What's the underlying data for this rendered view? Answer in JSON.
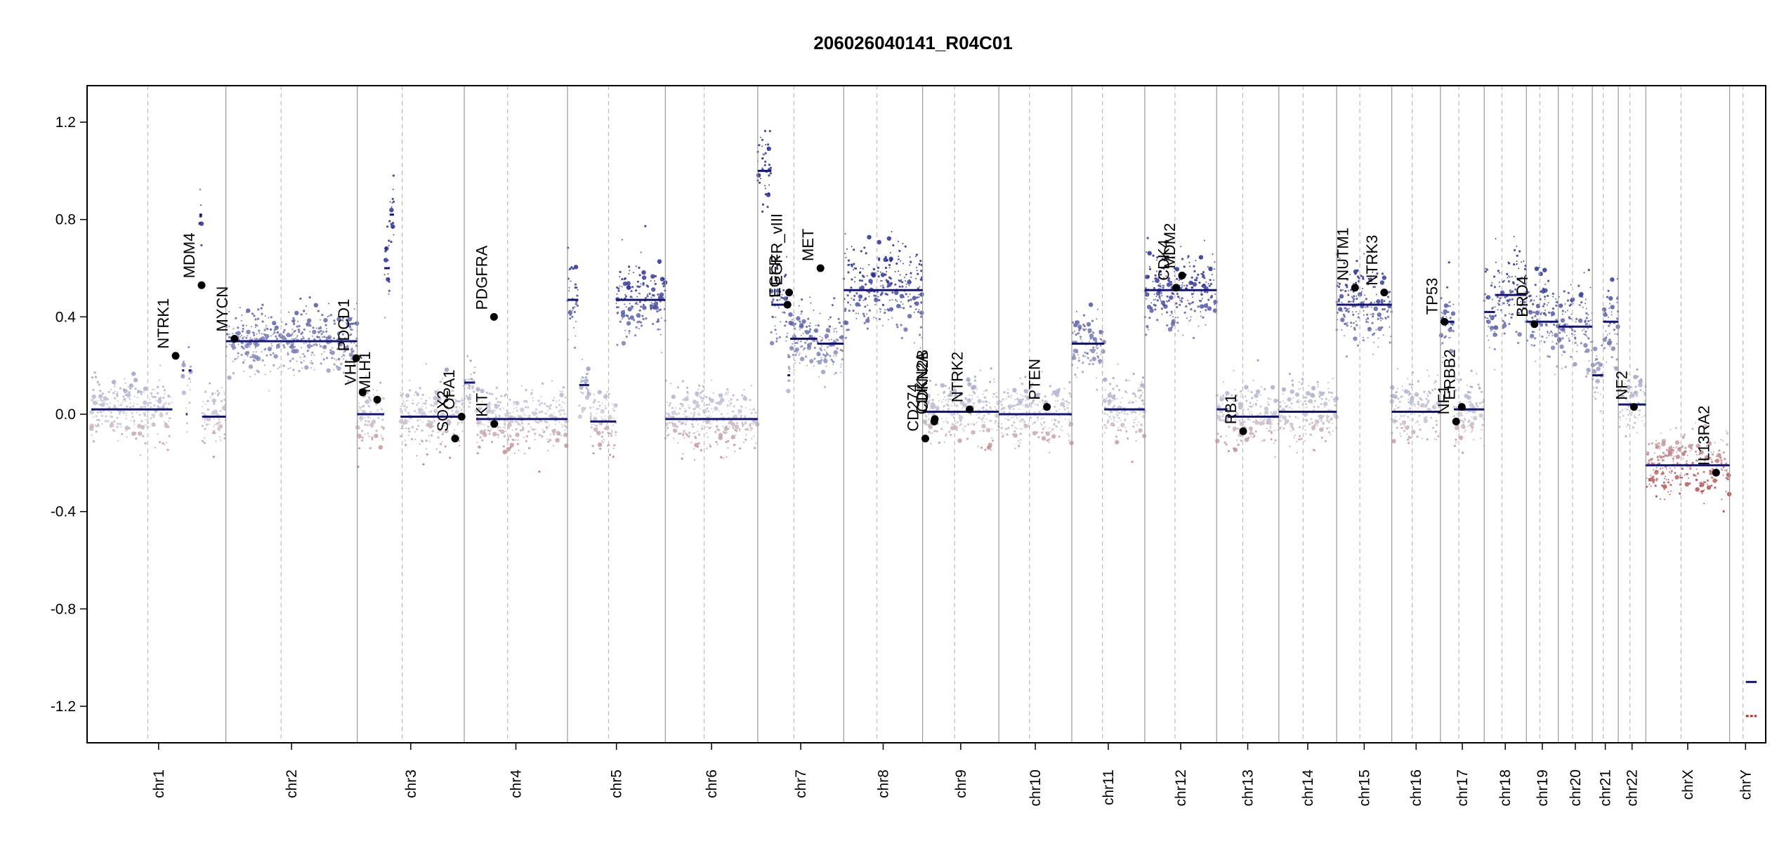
{
  "chart_data": {
    "type": "scatter",
    "title": "206026040141_R04C01",
    "xlabel": "",
    "ylabel": "",
    "ylim": [
      -1.35,
      1.35
    ],
    "yticks": [
      1.2,
      0.8,
      0.4,
      0.0,
      -0.4,
      -0.8,
      -1.2
    ],
    "ytick_labels": [
      "1.2",
      "0.8",
      "0.4",
      "0.0",
      "-0.4",
      "-0.8",
      "-1.2"
    ],
    "grid": false,
    "legend": "none",
    "colors": {
      "high": "#1b1f8f",
      "mid": "#c8c8d4",
      "low": "#b03030",
      "segment": "#141478",
      "chrom_line": "#999999",
      "centromere_line": "#bbbbbb"
    },
    "chromosomes": [
      {
        "name": "chr1",
        "length": 249
      },
      {
        "name": "chr2",
        "length": 243
      },
      {
        "name": "chr3",
        "length": 198
      },
      {
        "name": "chr4",
        "length": 191
      },
      {
        "name": "chr5",
        "length": 181
      },
      {
        "name": "chr6",
        "length": 171
      },
      {
        "name": "chr7",
        "length": 159
      },
      {
        "name": "chr8",
        "length": 146
      },
      {
        "name": "chr9",
        "length": 141
      },
      {
        "name": "chr10",
        "length": 135
      },
      {
        "name": "chr11",
        "length": 135
      },
      {
        "name": "chr12",
        "length": 133
      },
      {
        "name": "chr13",
        "length": 115
      },
      {
        "name": "chr14",
        "length": 107
      },
      {
        "name": "chr15",
        "length": 102
      },
      {
        "name": "chr16",
        "length": 90
      },
      {
        "name": "chr17",
        "length": 81
      },
      {
        "name": "chr18",
        "length": 78
      },
      {
        "name": "chr19",
        "length": 59
      },
      {
        "name": "chr20",
        "length": 63
      },
      {
        "name": "chr21",
        "length": 48
      },
      {
        "name": "chr22",
        "length": 51
      },
      {
        "name": "chrX",
        "length": 155
      },
      {
        "name": "chrY",
        "length": 59
      }
    ],
    "segments": [
      {
        "chr": "chr1",
        "start": 0,
        "end": 150,
        "value": 0.02
      },
      {
        "chr": "chr1",
        "start": 168,
        "end": 172,
        "value": 0.18
      },
      {
        "chr": "chr1",
        "start": 175,
        "end": 178,
        "value": 0.0
      },
      {
        "chr": "chr1",
        "start": 180,
        "end": 185,
        "value": 0.18
      },
      {
        "chr": "chr1",
        "start": 200,
        "end": 205,
        "value": 0.82
      },
      {
        "chr": "chr1",
        "start": 205,
        "end": 249,
        "value": -0.01
      },
      {
        "chr": "chr2",
        "start": 0,
        "end": 243,
        "value": 0.3
      },
      {
        "chr": "chr3",
        "start": 0,
        "end": 50,
        "value": 0.0
      },
      {
        "chr": "chr3",
        "start": 50,
        "end": 60,
        "value": 0.6
      },
      {
        "chr": "chr3",
        "start": 60,
        "end": 68,
        "value": 0.82
      },
      {
        "chr": "chr3",
        "start": 80,
        "end": 198,
        "value": -0.01
      },
      {
        "chr": "chr4",
        "start": 0,
        "end": 20,
        "value": 0.13
      },
      {
        "chr": "chr4",
        "start": 22,
        "end": 191,
        "value": -0.02
      },
      {
        "chr": "chr5",
        "start": 0,
        "end": 20,
        "value": 0.47
      },
      {
        "chr": "chr5",
        "start": 22,
        "end": 40,
        "value": 0.12
      },
      {
        "chr": "chr5",
        "start": 42,
        "end": 90,
        "value": -0.03
      },
      {
        "chr": "chr5",
        "start": 90,
        "end": 181,
        "value": 0.47
      },
      {
        "chr": "chr6",
        "start": 0,
        "end": 171,
        "value": -0.02
      },
      {
        "chr": "chr7",
        "start": 0,
        "end": 25,
        "value": 1.0
      },
      {
        "chr": "chr7",
        "start": 25,
        "end": 55,
        "value": 0.45
      },
      {
        "chr": "chr7",
        "start": 55,
        "end": 60,
        "value": 0.16
      },
      {
        "chr": "chr7",
        "start": 60,
        "end": 110,
        "value": 0.31
      },
      {
        "chr": "chr7",
        "start": 110,
        "end": 159,
        "value": 0.29
      },
      {
        "chr": "chr8",
        "start": 0,
        "end": 146,
        "value": 0.51
      },
      {
        "chr": "chr9",
        "start": 0,
        "end": 141,
        "value": 0.01
      },
      {
        "chr": "chr10",
        "start": 0,
        "end": 135,
        "value": 0.0
      },
      {
        "chr": "chr11",
        "start": 0,
        "end": 50,
        "value": 0.29
      },
      {
        "chr": "chr11",
        "start": 50,
        "end": 60,
        "value": 0.29
      },
      {
        "chr": "chr11",
        "start": 60,
        "end": 135,
        "value": 0.02
      },
      {
        "chr": "chr12",
        "start": 0,
        "end": 133,
        "value": 0.51
      },
      {
        "chr": "chr13",
        "start": 0,
        "end": 20,
        "value": 0.02
      },
      {
        "chr": "chr13",
        "start": 20,
        "end": 115,
        "value": -0.01
      },
      {
        "chr": "chr14",
        "start": 0,
        "end": 107,
        "value": 0.01
      },
      {
        "chr": "chr15",
        "start": 0,
        "end": 102,
        "value": 0.45
      },
      {
        "chr": "chr16",
        "start": 0,
        "end": 90,
        "value": 0.01
      },
      {
        "chr": "chr17",
        "start": 0,
        "end": 25,
        "value": 0.38
      },
      {
        "chr": "chr17",
        "start": 25,
        "end": 81,
        "value": 0.02
      },
      {
        "chr": "chr18",
        "start": 0,
        "end": 20,
        "value": 0.42
      },
      {
        "chr": "chr18",
        "start": 20,
        "end": 78,
        "value": 0.49
      },
      {
        "chr": "chr19",
        "start": 0,
        "end": 59,
        "value": 0.38
      },
      {
        "chr": "chr20",
        "start": 0,
        "end": 63,
        "value": 0.36
      },
      {
        "chr": "chr21",
        "start": 0,
        "end": 20,
        "value": 0.16
      },
      {
        "chr": "chr21",
        "start": 20,
        "end": 48,
        "value": 0.38
      },
      {
        "chr": "chr22",
        "start": 0,
        "end": 51,
        "value": 0.04
      },
      {
        "chr": "chrX",
        "start": 0,
        "end": 155,
        "value": -0.21
      },
      {
        "chr": "chrY",
        "start": 30,
        "end": 50,
        "value": -1.1
      },
      {
        "chr": "chrY",
        "start": 30,
        "end": 50,
        "value": -1.24
      }
    ],
    "genes": [
      {
        "label": "NTRK1",
        "chr": "chr1",
        "pos": 156,
        "value": 0.24
      },
      {
        "label": "MDM4",
        "chr": "chr1",
        "pos": 204,
        "value": 0.53
      },
      {
        "label": "MYCN",
        "chr": "chr2",
        "pos": 16,
        "value": 0.31
      },
      {
        "label": "PDCD1",
        "chr": "chr2",
        "pos": 241,
        "value": 0.23
      },
      {
        "label": "VHL",
        "chr": "chr3",
        "pos": 10,
        "value": 0.09
      },
      {
        "label": "MLH1",
        "chr": "chr3",
        "pos": 37,
        "value": 0.06
      },
      {
        "label": "SOX2",
        "chr": "chr3",
        "pos": 181,
        "value": -0.1
      },
      {
        "label": "OPA1",
        "chr": "chr3",
        "pos": 193,
        "value": -0.01
      },
      {
        "label": "PDGFRA",
        "chr": "chr4",
        "pos": 55,
        "value": 0.4
      },
      {
        "label": "KIT",
        "chr": "chr4",
        "pos": 55.5,
        "value": -0.04
      },
      {
        "label": "EGFR",
        "chr": "chr7",
        "pos": 55,
        "value": 0.45
      },
      {
        "label": "EGFR_vIII",
        "chr": "chr7",
        "pos": 58,
        "value": 0.5
      },
      {
        "label": "MET",
        "chr": "chr7",
        "pos": 116,
        "value": 0.6
      },
      {
        "label": "CD274",
        "chr": "chr9",
        "pos": 5,
        "value": -0.1
      },
      {
        "label": "CDKN2A",
        "chr": "chr9",
        "pos": 21.5,
        "value": -0.03
      },
      {
        "label": "CDKN2B",
        "chr": "chr9",
        "pos": 22.5,
        "value": -0.02
      },
      {
        "label": "NTRK2",
        "chr": "chr9",
        "pos": 87,
        "value": 0.02
      },
      {
        "label": "PTEN",
        "chr": "chr10",
        "pos": 89,
        "value": 0.03
      },
      {
        "label": "CDK4",
        "chr": "chr12",
        "pos": 58,
        "value": 0.52
      },
      {
        "label": "MDM2",
        "chr": "chr12",
        "pos": 69,
        "value": 0.57
      },
      {
        "label": "RB1",
        "chr": "chr13",
        "pos": 49,
        "value": -0.07
      },
      {
        "label": "NUTM1",
        "chr": "chr15",
        "pos": 34,
        "value": 0.52
      },
      {
        "label": "NTRK3",
        "chr": "chr15",
        "pos": 88,
        "value": 0.5
      },
      {
        "label": "TP53",
        "chr": "chr17",
        "pos": 7.5,
        "value": 0.38
      },
      {
        "label": "NF1",
        "chr": "chr17",
        "pos": 29,
        "value": -0.03
      },
      {
        "label": "ERBB2",
        "chr": "chr17",
        "pos": 39.5,
        "value": 0.03
      },
      {
        "label": "BRD4",
        "chr": "chr19",
        "pos": 15,
        "value": 0.37
      },
      {
        "label": "NF2",
        "chr": "chr22",
        "pos": 29,
        "value": 0.03
      },
      {
        "label": "IL13RA2",
        "chrX": true,
        "chr": "chrX",
        "pos": 130,
        "value": -0.24
      }
    ]
  }
}
